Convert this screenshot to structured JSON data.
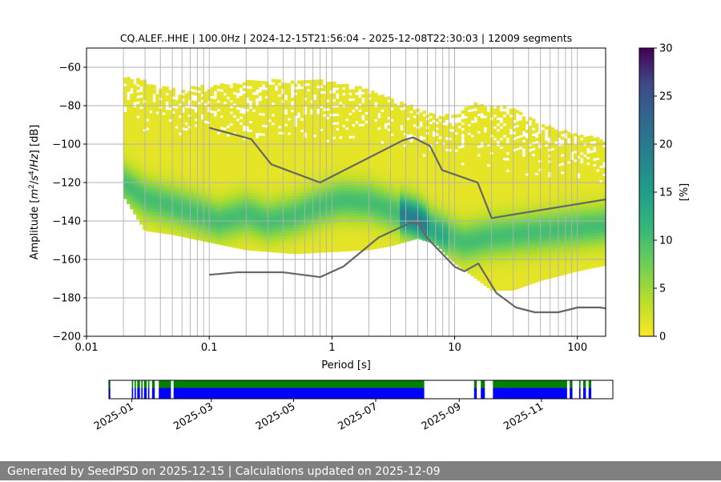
{
  "chart_data": {
    "type": "heatmap",
    "title": "CQ.ALEF..HHE | 100.0Hz | 2024-12-15T21:56:04 - 2025-12-08T22:30:03 | 12009 segments",
    "xlabel": "Period [s]",
    "ylabel_parts": [
      "Amplitude [",
      "m",
      "2",
      "/",
      "s",
      "4",
      "/",
      "Hz",
      "] [dB]"
    ],
    "xscale": "log",
    "xlim": [
      0.01,
      170
    ],
    "ylim": [
      -200,
      -50
    ],
    "x_ticks": [
      "0.01",
      "0.1",
      "1",
      "10",
      "100"
    ],
    "y_ticks": [
      "−200",
      "−180",
      "−160",
      "−140",
      "−120",
      "−100",
      "−80",
      "−60"
    ],
    "colorbar": {
      "label": "[%]",
      "min": 0,
      "max": 30,
      "ticks": [
        "0",
        "5",
        "10",
        "15",
        "20",
        "25",
        "30"
      ]
    },
    "grid": true,
    "psd_mode": {
      "period": [
        0.02,
        0.03,
        0.05,
        0.08,
        0.12,
        0.2,
        0.3,
        0.5,
        0.8,
        1.2,
        2,
        3,
        4,
        5,
        6,
        8,
        12,
        20,
        40,
        80,
        170
      ],
      "amplitude": [
        -120,
        -128,
        -132,
        -136,
        -140,
        -136,
        -140,
        -137,
        -132,
        -129,
        -130,
        -134,
        -137,
        -139,
        -143,
        -147,
        -151,
        -148,
        -146,
        -144,
        -142
      ]
    },
    "psd_band": {
      "period": [
        0.02,
        0.03,
        0.05,
        0.1,
        0.2,
        0.5,
        1,
        2,
        3,
        5,
        7,
        10,
        15,
        20,
        30,
        50,
        100,
        170
      ],
      "upper": [
        -65,
        -68,
        -72,
        -70,
        -68,
        -67,
        -68,
        -72,
        -77,
        -82,
        -86,
        -85,
        -79,
        -80,
        -82,
        -90,
        -96,
        -98
      ],
      "lower": [
        -127,
        -145,
        -147,
        -151,
        -155,
        -157,
        -156,
        -155,
        -153,
        -149,
        -152,
        -162,
        -170,
        -176,
        -176,
        -171,
        -166,
        -163
      ]
    },
    "nhnm": {
      "period": [
        0.1,
        0.22,
        0.32,
        0.8,
        3.8,
        4.6,
        6.3,
        7.9,
        15.4,
        20,
        170
      ],
      "amplitude": [
        -91.5,
        -97.4,
        -110.5,
        -120,
        -98,
        -96.5,
        -101,
        -113.5,
        -120,
        -138.5,
        -128.8
      ]
    },
    "nlnm": {
      "period": [
        0.1,
        0.17,
        0.4,
        0.8,
        1.24,
        2.4,
        4.3,
        5,
        6,
        10,
        12,
        15.6,
        21.9,
        31.6,
        45,
        70,
        101,
        154,
        170
      ],
      "amplitude": [
        -168,
        -166.7,
        -166.7,
        -169.2,
        -163.7,
        -148.6,
        -141.1,
        -141.1,
        -149,
        -163.8,
        -166.2,
        -162.1,
        -177.5,
        -185,
        -187.5,
        -187.5,
        -185,
        -185,
        -185.5
      ]
    },
    "timeline": {
      "xlim": [
        "2024-12-15",
        "2025-12-24"
      ],
      "tick_labels": [
        "2025-01",
        "2025-03",
        "2025-05",
        "2025-07",
        "2025-09",
        "2025-11"
      ],
      "tick_dates": [
        "2025-01-01",
        "2025-03-01",
        "2025-05-01",
        "2025-07-01",
        "2025-09-01",
        "2025-11-01"
      ],
      "coverage": [
        [
          "2024-12-15",
          "2024-12-16"
        ],
        [
          "2025-01-01",
          "2025-01-02"
        ],
        [
          "2025-01-03",
          "2025-01-04"
        ],
        [
          "2025-01-05",
          "2025-01-07"
        ],
        [
          "2025-01-08",
          "2025-01-09"
        ],
        [
          "2025-01-10",
          "2025-01-12"
        ],
        [
          "2025-01-13",
          "2025-01-14"
        ],
        [
          "2025-01-16",
          "2025-01-18"
        ],
        [
          "2025-01-21",
          "2025-01-30"
        ],
        [
          "2025-02-01",
          "2025-08-06"
        ],
        [
          "2025-09-12",
          "2025-09-14"
        ],
        [
          "2025-09-17",
          "2025-09-20"
        ],
        [
          "2025-09-26",
          "2025-11-20"
        ],
        [
          "2025-11-22",
          "2025-11-24"
        ],
        [
          "2025-11-29",
          "2025-11-30"
        ],
        [
          "2025-12-02",
          "2025-12-04"
        ],
        [
          "2025-12-06",
          "2025-12-08"
        ]
      ],
      "colors": {
        "top": "#008000",
        "bottom": "#0000ff"
      }
    }
  },
  "footer": {
    "text": "Generated by SeedPSD on 2025-12-15 | Calculations updated on 2025-12-09"
  }
}
